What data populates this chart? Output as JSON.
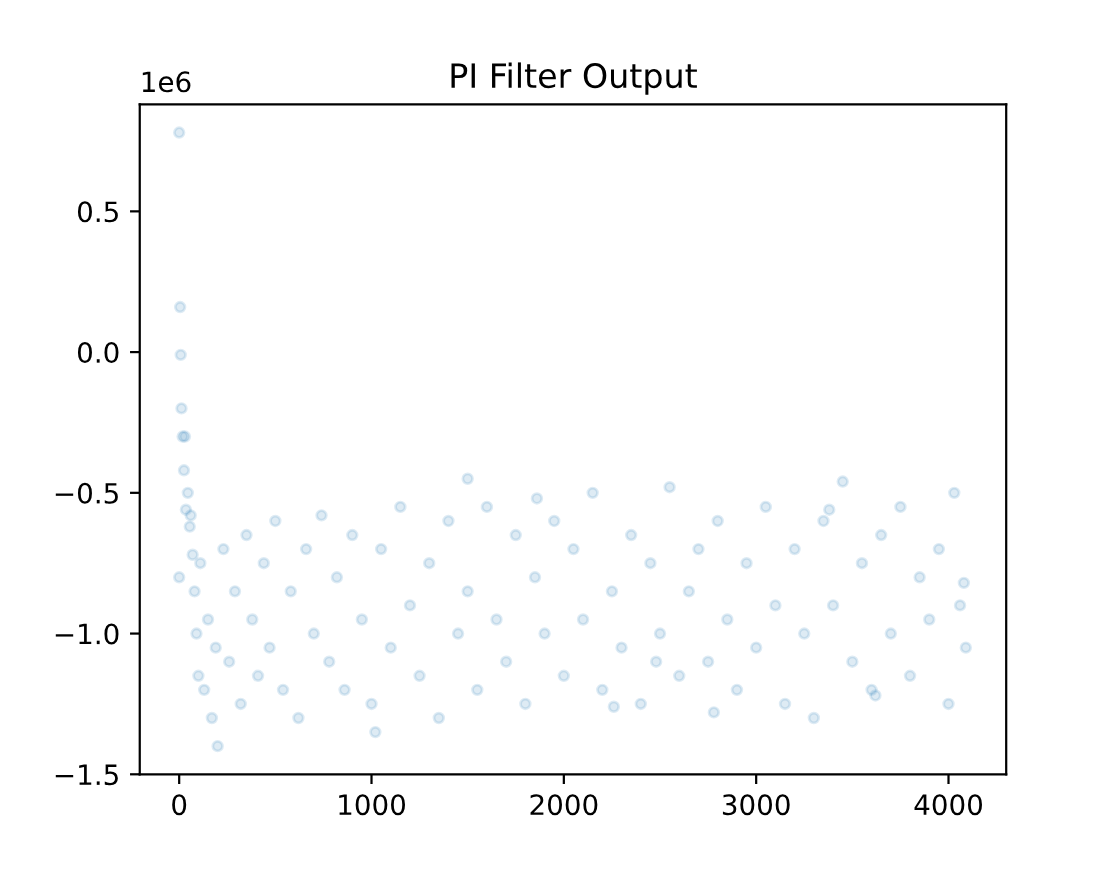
{
  "chart_data": {
    "type": "scatter",
    "title": "PI Filter Output",
    "annotations": [
      "1e6"
    ],
    "xlim": [
      -205,
      4300
    ],
    "ylim": [
      -1.5,
      0.88
    ],
    "xticks": [
      0,
      1000,
      2000,
      3000,
      4000
    ],
    "yticks": [
      {
        "value": -1.5,
        "label": "−1.5"
      },
      {
        "value": -1.0,
        "label": "−1.0"
      },
      {
        "value": -0.5,
        "label": "−0.5"
      },
      {
        "value": 0,
        "label": "0.0"
      },
      {
        "value": 0.5,
        "label": "0.5"
      }
    ],
    "grid": false,
    "marker": "circle",
    "series": [
      {
        "color": "#1f77b4",
        "x": [
          0,
          5,
          8,
          12,
          18,
          25,
          30,
          35,
          45,
          55,
          60,
          70,
          80,
          0,
          90,
          100,
          110,
          130,
          150,
          170,
          190,
          200,
          230,
          260,
          290,
          320,
          350,
          380,
          410,
          440,
          470,
          500,
          540,
          580,
          620,
          660,
          700,
          740,
          780,
          820,
          860,
          900,
          950,
          1000,
          1050,
          1100,
          1150,
          1200,
          1250,
          1300,
          1350,
          1400,
          1450,
          1500,
          1550,
          1600,
          1650,
          1700,
          1750,
          1800,
          1850,
          1900,
          1950,
          2000,
          2050,
          2100,
          2150,
          2200,
          2250,
          2300,
          2350,
          2400,
          2450,
          2500,
          2550,
          2600,
          2650,
          2700,
          2750,
          2800,
          2850,
          2900,
          2950,
          3000,
          3050,
          3100,
          3150,
          3200,
          3250,
          3300,
          3350,
          3400,
          3450,
          3500,
          3550,
          3600,
          3650,
          3700,
          3750,
          3800,
          3850,
          3900,
          3950,
          4000,
          4030,
          4060,
          4080,
          4090,
          1020,
          1500,
          2480,
          2780,
          3380,
          3620,
          1860,
          2260
        ],
        "values": [
          0.78,
          0.16,
          -0.01,
          -0.2,
          -0.3,
          -0.42,
          -0.3,
          -0.56,
          -0.5,
          -0.62,
          -0.58,
          -0.72,
          -0.85,
          -0.8,
          -1.0,
          -1.15,
          -0.75,
          -1.2,
          -0.95,
          -1.3,
          -1.05,
          -1.4,
          -0.7,
          -1.1,
          -0.85,
          -1.25,
          -0.65,
          -0.95,
          -1.15,
          -0.75,
          -1.05,
          -0.6,
          -1.2,
          -0.85,
          -1.3,
          -0.7,
          -1.0,
          -0.58,
          -1.1,
          -0.8,
          -1.2,
          -0.65,
          -0.95,
          -1.25,
          -0.7,
          -1.05,
          -0.55,
          -0.9,
          -1.15,
          -0.75,
          -1.3,
          -0.6,
          -1.0,
          -0.85,
          -1.2,
          -0.55,
          -0.95,
          -1.1,
          -0.65,
          -1.25,
          -0.8,
          -1.0,
          -0.6,
          -1.15,
          -0.7,
          -0.95,
          -0.5,
          -1.2,
          -0.85,
          -1.05,
          -0.65,
          -1.25,
          -0.75,
          -1.0,
          -0.48,
          -1.15,
          -0.85,
          -0.7,
          -1.1,
          -0.6,
          -0.95,
          -1.2,
          -0.75,
          -1.05,
          -0.55,
          -0.9,
          -1.25,
          -0.7,
          -1.0,
          -1.3,
          -0.6,
          -0.9,
          -0.46,
          -1.1,
          -0.75,
          -1.2,
          -0.65,
          -1.0,
          -0.55,
          -1.15,
          -0.8,
          -0.95,
          -0.7,
          -1.25,
          -0.5,
          -0.9,
          -0.82,
          -1.05,
          -1.35,
          -0.45,
          -1.1,
          -1.28,
          -0.56,
          -1.22,
          -0.52,
          -1.26
        ]
      }
    ]
  }
}
